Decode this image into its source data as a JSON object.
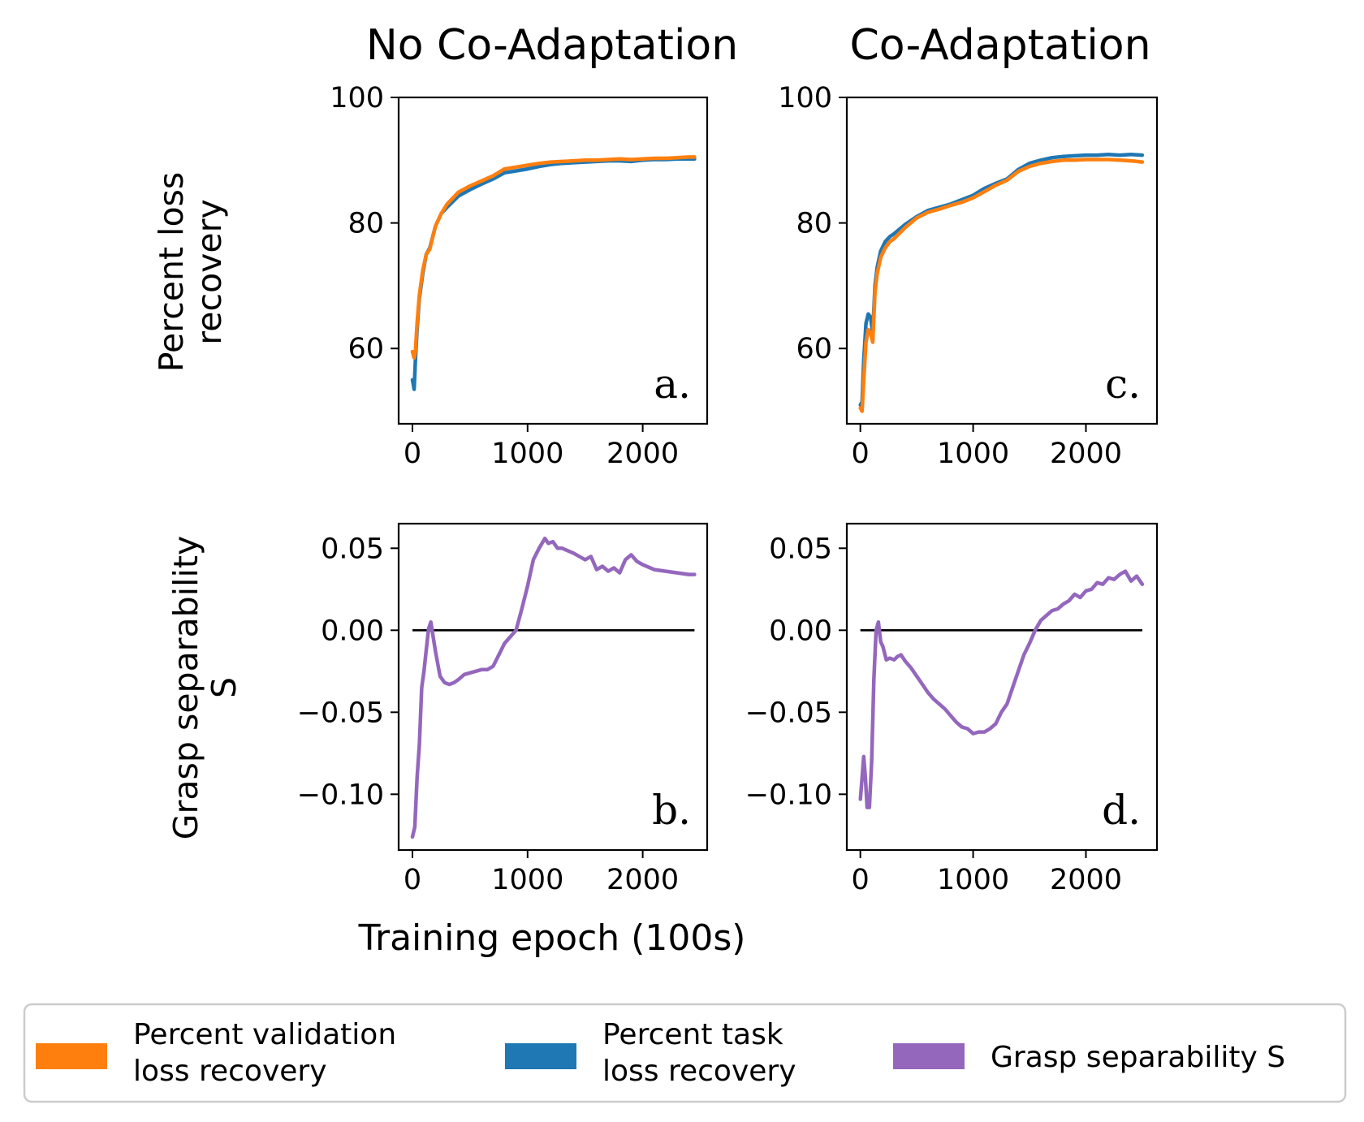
{
  "chart_data": {
    "type": "line",
    "column_titles": [
      "No Co-Adaptation",
      "Co-Adaptation"
    ],
    "row_ylabels": [
      [
        "Percent loss",
        "recovery"
      ],
      [
        "Grasp separability",
        "S"
      ]
    ],
    "xlabel": "Training epoch (100s)",
    "legend": [
      {
        "label_lines": [
          "Percent validation",
          "loss recovery"
        ],
        "color": "#ff7f0e"
      },
      {
        "label_lines": [
          "Percent task",
          "loss recovery"
        ],
        "color": "#1f77b4"
      },
      {
        "label_lines": [
          "Grasp separability S"
        ],
        "color": "#9467bd"
      }
    ],
    "panels": [
      {
        "id": "a",
        "letter": "a.",
        "xlim": [
          -120,
          2560
        ],
        "ylim": [
          48,
          100
        ],
        "xticks": [
          0,
          1000,
          2000
        ],
        "xtick_labels": [
          "0",
          "1000",
          "2000"
        ],
        "yticks": [
          60,
          80,
          100
        ],
        "ytick_labels": [
          "60",
          "80",
          "100"
        ],
        "series": [
          {
            "name": "Percent task loss recovery",
            "color": "#1f77b4",
            "x": [
              0,
              15,
              25,
              40,
              60,
              90,
              120,
              150,
              200,
              250,
              300,
              400,
              500,
              600,
              700,
              800,
              900,
              1000,
              1100,
              1200,
              1300,
              1400,
              1500,
              1600,
              1700,
              1800,
              1900,
              2000,
              2100,
              2200,
              2300,
              2400,
              2450
            ],
            "y": [
              55,
              53.5,
              58,
              63,
              68,
              72,
              75,
              76,
              79.5,
              81.5,
              82.5,
              84.3,
              85.3,
              86.2,
              87,
              88,
              88.3,
              88.6,
              89,
              89.3,
              89.5,
              89.6,
              89.7,
              89.8,
              89.9,
              89.9,
              89.8,
              90,
              90.1,
              90.1,
              90.2,
              90.2,
              90.2
            ]
          },
          {
            "name": "Percent validation loss recovery",
            "color": "#ff7f0e",
            "x": [
              0,
              15,
              25,
              40,
              60,
              90,
              120,
              150,
              200,
              250,
              300,
              400,
              500,
              600,
              700,
              800,
              900,
              1000,
              1100,
              1200,
              1300,
              1400,
              1500,
              1600,
              1700,
              1800,
              1900,
              2000,
              2100,
              2200,
              2300,
              2400,
              2450
            ],
            "y": [
              59.5,
              58.5,
              59.5,
              64,
              68.5,
              72.5,
              75,
              75.8,
              79.5,
              81.5,
              83,
              84.9,
              85.9,
              86.7,
              87.5,
              88.6,
              88.9,
              89.2,
              89.5,
              89.7,
              89.8,
              89.9,
              90,
              90,
              90.1,
              90.2,
              90.1,
              90.2,
              90.3,
              90.3,
              90.4,
              90.5,
              90.5
            ]
          }
        ]
      },
      {
        "id": "b",
        "letter": "b.",
        "xlim": [
          -120,
          2560
        ],
        "ylim": [
          -0.134,
          0.065
        ],
        "xticks": [
          0,
          1000,
          2000
        ],
        "xtick_labels": [
          "0",
          "1000",
          "2000"
        ],
        "yticks": [
          -0.1,
          -0.05,
          0.0,
          0.05
        ],
        "ytick_labels": [
          "−0.10",
          "−0.05",
          "0.00",
          "0.05"
        ],
        "hline": {
          "y": 0,
          "x": [
            0,
            2450
          ],
          "color": "#000000"
        },
        "series": [
          {
            "name": "Grasp separability S",
            "color": "#9467bd",
            "x": [
              0,
              20,
              40,
              60,
              80,
              100,
              120,
              140,
              160,
              180,
              200,
              240,
              280,
              320,
              360,
              400,
              450,
              500,
              550,
              600,
              650,
              700,
              750,
              800,
              850,
              900,
              950,
              1000,
              1050,
              1100,
              1150,
              1180,
              1220,
              1260,
              1300,
              1400,
              1500,
              1550,
              1600,
              1650,
              1700,
              1750,
              1800,
              1850,
              1900,
              1950,
              2000,
              2100,
              2200,
              2300,
              2400,
              2450
            ],
            "y": [
              -0.126,
              -0.12,
              -0.09,
              -0.07,
              -0.035,
              -0.025,
              -0.012,
              0.001,
              0.005,
              -0.004,
              -0.013,
              -0.028,
              -0.032,
              -0.033,
              -0.032,
              -0.03,
              -0.027,
              -0.026,
              -0.025,
              -0.024,
              -0.024,
              -0.022,
              -0.015,
              -0.008,
              -0.004,
              0.0,
              0.013,
              0.027,
              0.043,
              0.05,
              0.056,
              0.053,
              0.054,
              0.05,
              0.05,
              0.047,
              0.043,
              0.045,
              0.037,
              0.039,
              0.036,
              0.038,
              0.035,
              0.043,
              0.046,
              0.042,
              0.04,
              0.037,
              0.036,
              0.035,
              0.034,
              0.034
            ]
          }
        ]
      },
      {
        "id": "c",
        "letter": "c.",
        "xlim": [
          -120,
          2630
        ],
        "ylim": [
          48,
          100
        ],
        "xticks": [
          0,
          1000,
          2000
        ],
        "xtick_labels": [
          "0",
          "1000",
          "2000"
        ],
        "yticks": [
          60,
          80,
          100
        ],
        "ytick_labels": [
          "60",
          "80",
          "100"
        ],
        "series": [
          {
            "name": "Percent task loss recovery",
            "color": "#1f77b4",
            "x": [
              0,
              15,
              30,
              50,
              70,
              90,
              110,
              130,
              150,
              180,
              220,
              260,
              300,
              400,
              500,
              600,
              700,
              800,
              900,
              1000,
              1100,
              1200,
              1300,
              1400,
              1500,
              1600,
              1700,
              1800,
              1900,
              2000,
              2100,
              2200,
              2300,
              2400,
              2500
            ],
            "y": [
              51,
              51.5,
              58,
              64,
              65.5,
              65,
              62.5,
              70,
              73,
              75.5,
              77,
              77.8,
              78.3,
              79.8,
              81,
              82,
              82.5,
              83,
              83.7,
              84.4,
              85.5,
              86.3,
              87,
              88.5,
              89.5,
              90,
              90.4,
              90.6,
              90.7,
              90.8,
              90.8,
              90.9,
              90.8,
              90.9,
              90.8
            ]
          },
          {
            "name": "Percent validation loss recovery",
            "color": "#ff7f0e",
            "x": [
              0,
              15,
              30,
              50,
              70,
              90,
              110,
              130,
              150,
              180,
              220,
              260,
              300,
              400,
              500,
              600,
              700,
              800,
              900,
              1000,
              1100,
              1200,
              1300,
              1400,
              1500,
              1600,
              1700,
              1800,
              1900,
              2000,
              2100,
              2200,
              2300,
              2400,
              2500
            ],
            "y": [
              50.5,
              50,
              55,
              61,
              63,
              62.5,
              61,
              69,
              72,
              74.5,
              76,
              77,
              77.5,
              79.3,
              80.8,
              81.7,
              82.2,
              82.8,
              83.3,
              84,
              85,
              86,
              86.8,
              88.2,
              89,
              89.5,
              89.8,
              90,
              90,
              90.1,
              90.1,
              90.1,
              90,
              89.9,
              89.7
            ]
          }
        ]
      },
      {
        "id": "d",
        "letter": "d.",
        "xlim": [
          -120,
          2630
        ],
        "ylim": [
          -0.134,
          0.065
        ],
        "xticks": [
          0,
          1000,
          2000
        ],
        "xtick_labels": [
          "0",
          "1000",
          "2000"
        ],
        "yticks": [
          -0.1,
          -0.05,
          0.0,
          0.05
        ],
        "ytick_labels": [
          "−0.10",
          "−0.05",
          "0.00",
          "0.05"
        ],
        "hline": {
          "y": 0,
          "x": [
            0,
            2500
          ],
          "color": "#000000"
        },
        "series": [
          {
            "name": "Grasp separability S",
            "color": "#9467bd",
            "x": [
              0,
              15,
              30,
              45,
              60,
              80,
              100,
              120,
              140,
              160,
              180,
              200,
              230,
              260,
              300,
              330,
              360,
              400,
              450,
              500,
              550,
              600,
              650,
              700,
              750,
              800,
              850,
              900,
              950,
              1000,
              1050,
              1100,
              1150,
              1200,
              1250,
              1300,
              1350,
              1400,
              1450,
              1500,
              1550,
              1600,
              1650,
              1700,
              1750,
              1800,
              1850,
              1900,
              1950,
              2000,
              2050,
              2100,
              2150,
              2200,
              2250,
              2300,
              2350,
              2400,
              2450,
              2500
            ],
            "y": [
              -0.103,
              -0.09,
              -0.077,
              -0.09,
              -0.108,
              -0.108,
              -0.08,
              -0.03,
              0.0,
              0.005,
              -0.007,
              -0.01,
              -0.018,
              -0.017,
              -0.018,
              -0.016,
              -0.015,
              -0.019,
              -0.023,
              -0.028,
              -0.033,
              -0.038,
              -0.042,
              -0.045,
              -0.048,
              -0.052,
              -0.056,
              -0.059,
              -0.06,
              -0.063,
              -0.062,
              -0.062,
              -0.06,
              -0.057,
              -0.05,
              -0.045,
              -0.035,
              -0.025,
              -0.015,
              -0.008,
              0.0,
              0.006,
              0.009,
              0.012,
              0.013,
              0.016,
              0.018,
              0.022,
              0.02,
              0.024,
              0.025,
              0.029,
              0.028,
              0.032,
              0.031,
              0.034,
              0.036,
              0.03,
              0.033,
              0.028
            ]
          }
        ]
      }
    ]
  }
}
